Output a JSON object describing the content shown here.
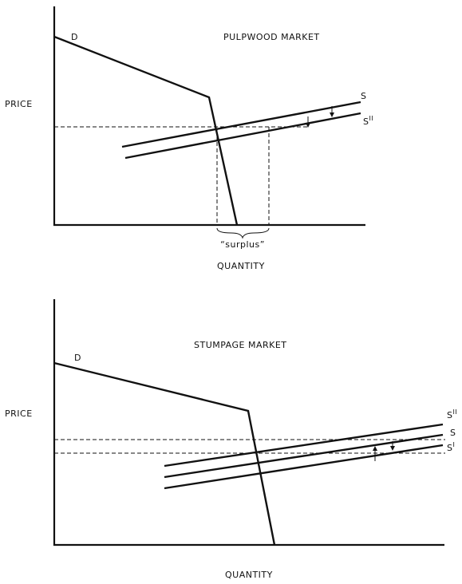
{
  "panels": [
    {
      "title": "PULPWOOD MARKET",
      "y_label": "PRICE",
      "x_label": "QUANTITY",
      "curves": [
        {
          "text": "D"
        },
        {
          "text": "S"
        },
        {
          "text": "S",
          "sup": "II"
        }
      ],
      "annotation": "“surplus”"
    },
    {
      "title": "STUMPAGE MARKET",
      "y_label": "PRICE",
      "x_label": "QUANTITY",
      "curves": [
        {
          "text": "D"
        },
        {
          "text": "S",
          "sup": "II"
        },
        {
          "text": "S"
        },
        {
          "text": "S",
          "sup": "I"
        }
      ]
    }
  ]
}
